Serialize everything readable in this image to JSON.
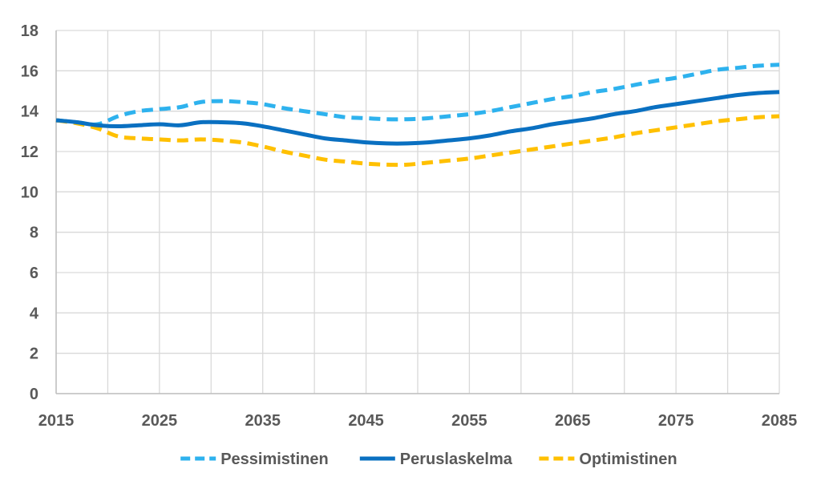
{
  "chart_data": {
    "type": "line",
    "title": "",
    "xlabel": "",
    "ylabel": "",
    "xlim": [
      2015,
      2085
    ],
    "ylim": [
      0,
      18
    ],
    "x_ticks": [
      2015,
      2025,
      2035,
      2045,
      2055,
      2065,
      2075,
      2085
    ],
    "x_tick_labels": [
      "2015",
      "2025",
      "2035",
      "2045",
      "2055",
      "2065",
      "2075",
      "2085"
    ],
    "y_ticks": [
      0,
      2,
      4,
      6,
      8,
      10,
      12,
      14,
      16,
      18
    ],
    "y_tick_labels": [
      "0",
      "2",
      "4",
      "6",
      "8",
      "10",
      "12",
      "14",
      "16",
      "18"
    ],
    "grid": true,
    "legend_position": "bottom",
    "series": [
      {
        "name": "Pessimistinen",
        "color": "#2EB2EE",
        "style": "dashed",
        "x": [
          2015,
          2017,
          2019,
          2021,
          2023,
          2025,
          2027,
          2029,
          2031,
          2033,
          2035,
          2037,
          2039,
          2041,
          2043,
          2045,
          2047,
          2049,
          2051,
          2053,
          2055,
          2057,
          2059,
          2061,
          2063,
          2065,
          2067,
          2069,
          2071,
          2073,
          2075,
          2077,
          2079,
          2081,
          2083,
          2085
        ],
        "values": [
          13.55,
          13.45,
          13.35,
          13.75,
          14.0,
          14.1,
          14.2,
          14.45,
          14.5,
          14.45,
          14.35,
          14.15,
          14.0,
          13.85,
          13.7,
          13.65,
          13.6,
          13.6,
          13.65,
          13.75,
          13.85,
          14.0,
          14.2,
          14.4,
          14.6,
          14.75,
          14.95,
          15.1,
          15.3,
          15.5,
          15.65,
          15.85,
          16.05,
          16.15,
          16.25,
          16.3
        ]
      },
      {
        "name": "Peruslaskelma",
        "color": "#0A70C1",
        "style": "solid",
        "x": [
          2015,
          2017,
          2019,
          2021,
          2023,
          2025,
          2027,
          2029,
          2031,
          2033,
          2035,
          2037,
          2039,
          2041,
          2043,
          2045,
          2047,
          2049,
          2051,
          2053,
          2055,
          2057,
          2059,
          2061,
          2063,
          2065,
          2067,
          2069,
          2071,
          2073,
          2075,
          2077,
          2079,
          2081,
          2083,
          2085
        ],
        "values": [
          13.55,
          13.45,
          13.3,
          13.25,
          13.3,
          13.35,
          13.3,
          13.45,
          13.45,
          13.4,
          13.25,
          13.05,
          12.85,
          12.65,
          12.55,
          12.45,
          12.4,
          12.4,
          12.45,
          12.55,
          12.65,
          12.8,
          13.0,
          13.15,
          13.35,
          13.5,
          13.65,
          13.85,
          14.0,
          14.2,
          14.35,
          14.5,
          14.65,
          14.8,
          14.9,
          14.95
        ]
      },
      {
        "name": "Optimistinen",
        "color": "#FFC000",
        "style": "dashed",
        "x": [
          2015,
          2017,
          2019,
          2021,
          2023,
          2025,
          2027,
          2029,
          2031,
          2033,
          2035,
          2037,
          2039,
          2041,
          2043,
          2045,
          2047,
          2049,
          2051,
          2053,
          2055,
          2057,
          2059,
          2061,
          2063,
          2065,
          2067,
          2069,
          2071,
          2073,
          2075,
          2077,
          2079,
          2081,
          2083,
          2085
        ],
        "values": [
          13.55,
          13.4,
          13.15,
          12.75,
          12.65,
          12.6,
          12.55,
          12.6,
          12.55,
          12.45,
          12.25,
          12.0,
          11.8,
          11.6,
          11.5,
          11.4,
          11.35,
          11.35,
          11.45,
          11.55,
          11.65,
          11.8,
          11.95,
          12.1,
          12.25,
          12.4,
          12.55,
          12.7,
          12.9,
          13.05,
          13.2,
          13.35,
          13.5,
          13.6,
          13.7,
          13.75
        ]
      }
    ]
  }
}
